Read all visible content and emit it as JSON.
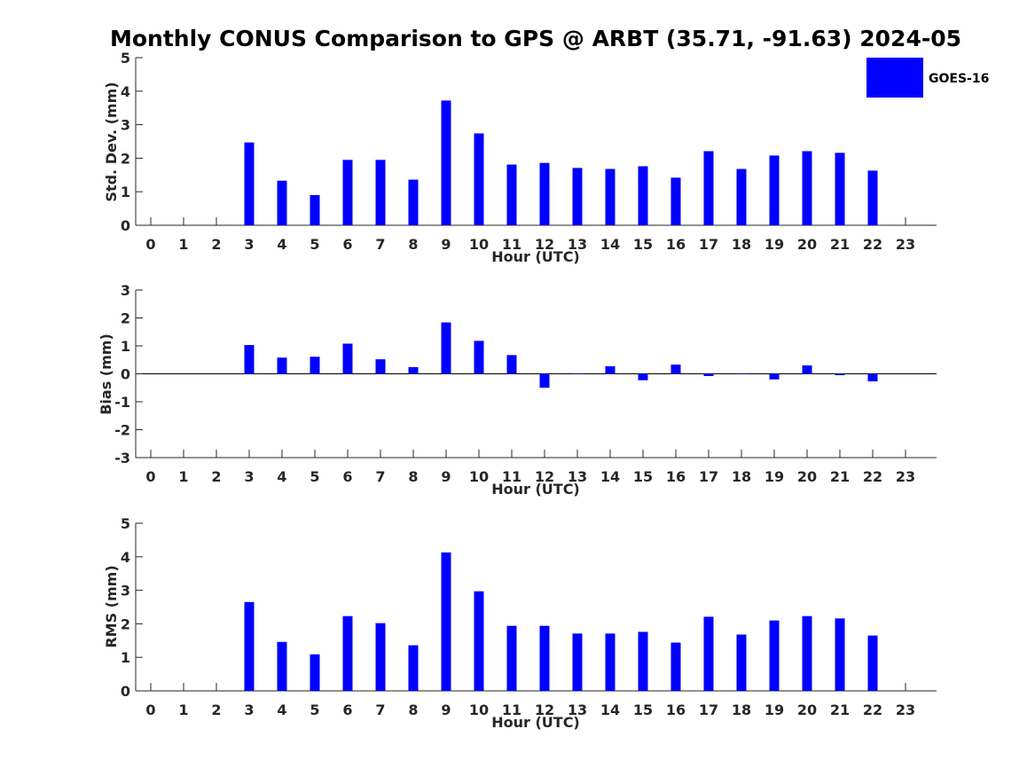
{
  "title": "Monthly CONUS Comparison to GPS @ ARBT (35.71, -91.63) 2024-05",
  "colors": {
    "bar": "#0000FF",
    "axis": "#262626",
    "background": "#FFFFFF"
  },
  "legend": {
    "label": "GOES-16",
    "color": "#0000FF",
    "placement": "top-right"
  },
  "chart_data": [
    {
      "id": "std",
      "type": "bar",
      "ylabel": "Std. Dev. (mm)",
      "xlabel": "Hour (UTC)",
      "ylim": [
        0,
        5
      ],
      "yticks": [
        0,
        1,
        2,
        3,
        4,
        5
      ],
      "yticklabels": [
        "0",
        "1",
        "2",
        "3",
        "4",
        "5"
      ],
      "categories": [
        "0",
        "1",
        "2",
        "3",
        "4",
        "5",
        "6",
        "7",
        "8",
        "9",
        "10",
        "11",
        "12",
        "13",
        "14",
        "15",
        "16",
        "17",
        "18",
        "19",
        "20",
        "21",
        "22",
        "23"
      ],
      "series": [
        {
          "name": "GOES-16",
          "values": [
            null,
            null,
            null,
            2.47,
            1.33,
            0.9,
            1.95,
            1.95,
            1.36,
            3.72,
            2.74,
            1.81,
            1.86,
            1.71,
            1.68,
            1.76,
            1.42,
            2.21,
            1.68,
            2.08,
            2.21,
            2.16,
            1.63,
            null
          ]
        }
      ]
    },
    {
      "id": "bias",
      "type": "bar",
      "ylabel": "Bias (mm)",
      "xlabel": "Hour (UTC)",
      "ylim": [
        -3,
        3
      ],
      "yticks": [
        -3,
        -2,
        -1,
        0,
        1,
        2,
        3
      ],
      "yticklabels": [
        "-3",
        "-2",
        "-1",
        "0",
        "1",
        "2",
        "3"
      ],
      "categories": [
        "0",
        "1",
        "2",
        "3",
        "4",
        "5",
        "6",
        "7",
        "8",
        "9",
        "10",
        "11",
        "12",
        "13",
        "14",
        "15",
        "16",
        "17",
        "18",
        "19",
        "20",
        "21",
        "22",
        "23"
      ],
      "series": [
        {
          "name": "GOES-16",
          "values": [
            null,
            null,
            null,
            1.03,
            0.58,
            0.61,
            1.08,
            0.52,
            0.24,
            1.84,
            1.18,
            0.67,
            -0.5,
            0.0,
            0.27,
            -0.23,
            0.33,
            -0.08,
            0.0,
            -0.2,
            0.3,
            -0.05,
            -0.27,
            null
          ]
        }
      ]
    },
    {
      "id": "rms",
      "type": "bar",
      "ylabel": "RMS (mm)",
      "xlabel": "Hour (UTC)",
      "ylim": [
        0,
        5
      ],
      "yticks": [
        0,
        1,
        2,
        3,
        4,
        5
      ],
      "yticklabels": [
        "0",
        "1",
        "2",
        "3",
        "4",
        "5"
      ],
      "categories": [
        "0",
        "1",
        "2",
        "3",
        "4",
        "5",
        "6",
        "7",
        "8",
        "9",
        "10",
        "11",
        "12",
        "13",
        "14",
        "15",
        "16",
        "17",
        "18",
        "19",
        "20",
        "21",
        "22",
        "23"
      ],
      "series": [
        {
          "name": "GOES-16",
          "values": [
            null,
            null,
            null,
            2.65,
            1.46,
            1.09,
            2.23,
            2.02,
            1.36,
            4.13,
            2.97,
            1.94,
            1.94,
            1.71,
            1.71,
            1.76,
            1.44,
            2.21,
            1.68,
            2.1,
            2.23,
            2.16,
            1.65,
            null
          ]
        }
      ]
    }
  ]
}
